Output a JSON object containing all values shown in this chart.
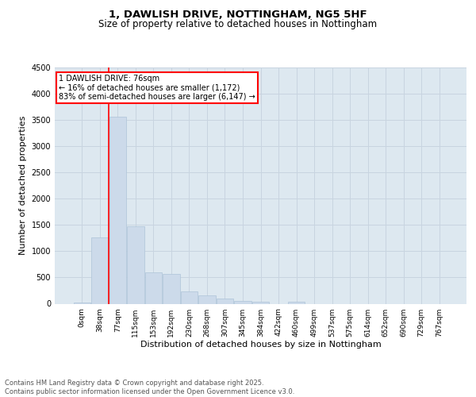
{
  "title_line1": "1, DAWLISH DRIVE, NOTTINGHAM, NG5 5HF",
  "title_line2": "Size of property relative to detached houses in Nottingham",
  "xlabel": "Distribution of detached houses by size in Nottingham",
  "ylabel": "Number of detached properties",
  "bar_labels": [
    "0sqm",
    "38sqm",
    "77sqm",
    "115sqm",
    "153sqm",
    "192sqm",
    "230sqm",
    "268sqm",
    "307sqm",
    "345sqm",
    "384sqm",
    "422sqm",
    "460sqm",
    "499sqm",
    "537sqm",
    "575sqm",
    "614sqm",
    "652sqm",
    "690sqm",
    "729sqm",
    "767sqm"
  ],
  "bar_values": [
    30,
    1270,
    3560,
    1480,
    600,
    570,
    230,
    160,
    100,
    50,
    40,
    0,
    40,
    0,
    0,
    0,
    0,
    0,
    0,
    0,
    0
  ],
  "bar_color": "#ccdaea",
  "bar_edgecolor": "#aec4d8",
  "grid_color": "#c8d4e0",
  "background_color": "#dde8f0",
  "vline_color": "red",
  "annotation_text": "1 DAWLISH DRIVE: 76sqm\n← 16% of detached houses are smaller (1,172)\n83% of semi-detached houses are larger (6,147) →",
  "annotation_box_color": "red",
  "annotation_box_facecolor": "white",
  "ylim": [
    0,
    4500
  ],
  "yticks": [
    0,
    500,
    1000,
    1500,
    2000,
    2500,
    3000,
    3500,
    4000,
    4500
  ],
  "footer_text": "Contains HM Land Registry data © Crown copyright and database right 2025.\nContains public sector information licensed under the Open Government Licence v3.0.",
  "title_fontsize": 9.5,
  "subtitle_fontsize": 8.5,
  "tick_fontsize": 6.5,
  "label_fontsize": 8,
  "footer_fontsize": 6,
  "annot_fontsize": 7
}
